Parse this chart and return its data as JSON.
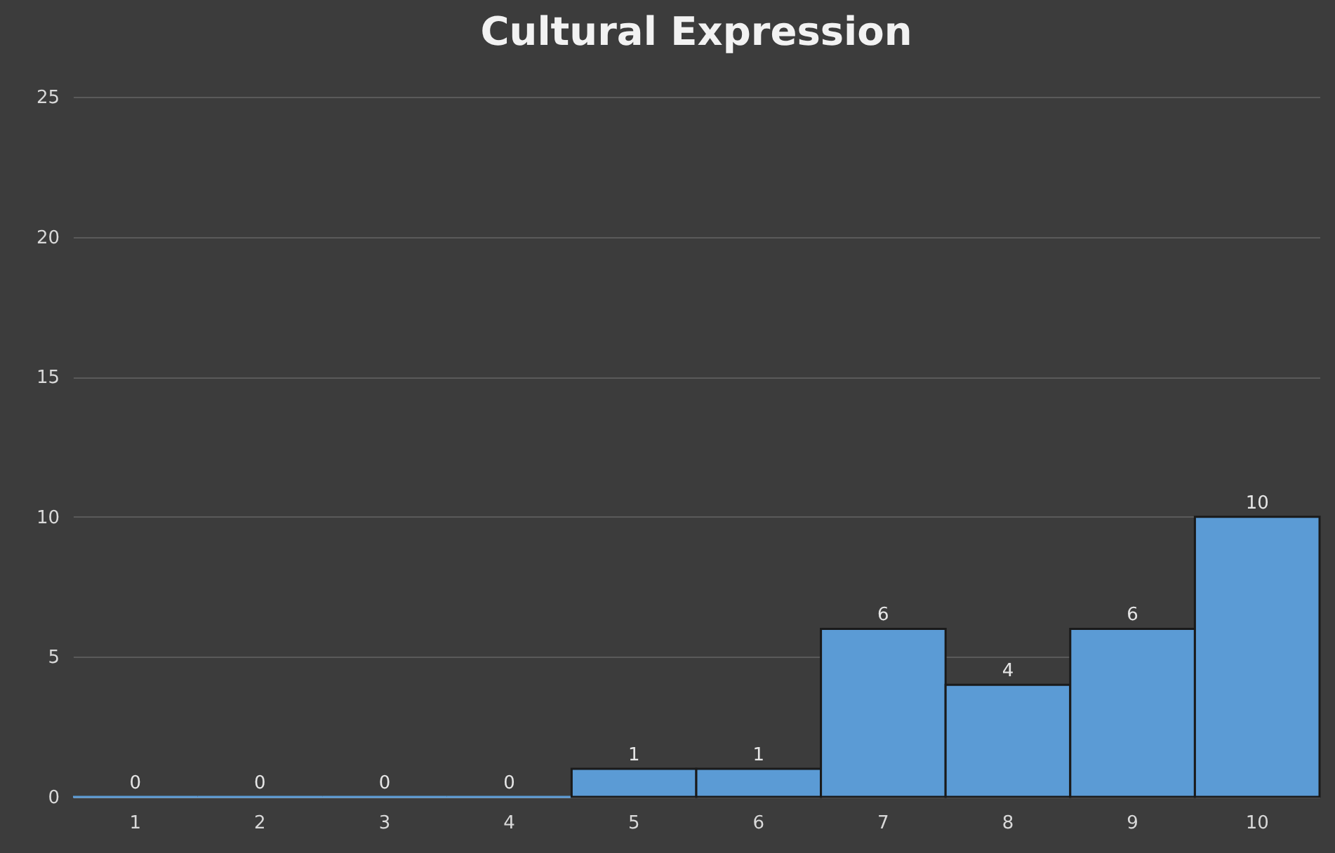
{
  "chart_data": {
    "type": "bar",
    "title": "Cultural Expression",
    "categories": [
      "1",
      "2",
      "3",
      "4",
      "5",
      "6",
      "7",
      "8",
      "9",
      "10"
    ],
    "values": [
      0,
      0,
      0,
      0,
      1,
      1,
      6,
      4,
      6,
      10
    ],
    "color": "#5b9bd5",
    "ylim": [
      0,
      25
    ],
    "yticks": [
      0,
      5,
      10,
      15,
      20,
      25
    ],
    "grid": "y",
    "data_labels": true
  }
}
